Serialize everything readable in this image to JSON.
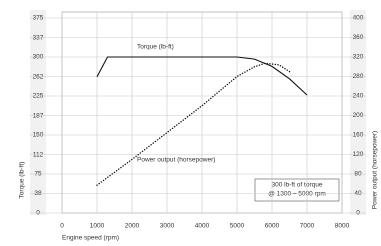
{
  "chart_data": {
    "type": "line",
    "y_label": "Torque (lb-ft)",
    "y2_label": "Power output (horsepower)",
    "x_label": "Engine speed (rpm)",
    "xlim": [
      0,
      8000
    ],
    "xticks": [
      0,
      1000,
      2000,
      3000,
      4000,
      5000,
      6000,
      7000,
      8000
    ],
    "ylim": [
      0,
      375
    ],
    "yticks": [
      0,
      38,
      75,
      112,
      150,
      187,
      225,
      262,
      300,
      337,
      375
    ],
    "y2lim": [
      0,
      400
    ],
    "y2ticks": [
      0,
      40,
      80,
      120,
      160,
      200,
      240,
      280,
      320,
      360,
      400
    ],
    "grid": true,
    "series": [
      {
        "name": "Torque (lb-ft)",
        "color": "#111111",
        "style": "solid",
        "x": [
          1000,
          1300,
          5000,
          5500,
          6000,
          6500,
          7000
        ],
        "values": [
          262,
          300,
          300,
          296,
          282,
          258,
          227
        ]
      },
      {
        "name": "Power output (horsepower)",
        "color": "#111111",
        "style": "dotted",
        "axis": "y2",
        "x": [
          1000,
          2000,
          3000,
          4000,
          4500,
          5000,
          5500,
          5800,
          6200,
          6500
        ],
        "values": [
          57,
          110,
          165,
          220,
          250,
          280,
          300,
          307,
          304,
          290
        ]
      }
    ],
    "annotation": [
      "300 lb-ft of torque",
      "@ 1300 – 5000 rpm"
    ]
  }
}
